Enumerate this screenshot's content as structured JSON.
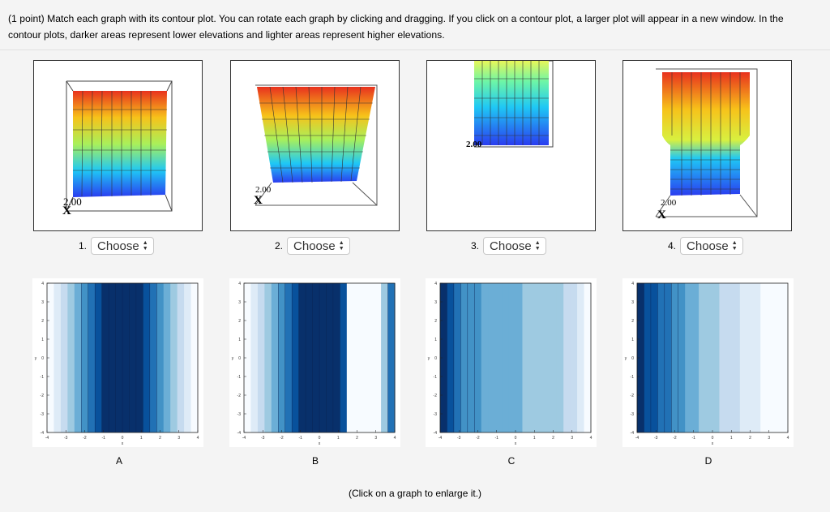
{
  "prompt": {
    "text": "(1 point) Match each graph with its contour plot. You can rotate each graph by clicking and dragging. If you click on a contour plot, a larger plot will appear in a new window. In the contour plots, darker areas represent lower elevations and lighter areas represent higher elevations."
  },
  "graphs": [
    {
      "number": "1.",
      "select_value": "Choose",
      "axis_label": "2.00"
    },
    {
      "number": "2.",
      "select_value": "Choose",
      "axis_label": "2.00"
    },
    {
      "number": "3.",
      "select_value": "Choose",
      "axis_label": "2.00"
    },
    {
      "number": "4.",
      "select_value": "Choose",
      "axis_label": "2.00"
    }
  ],
  "contours": [
    {
      "letter": "A"
    },
    {
      "letter": "B"
    },
    {
      "letter": "C"
    },
    {
      "letter": "D"
    }
  ],
  "contour_axes": {
    "y_ticks": [
      "4",
      "3",
      "2",
      "1",
      "0",
      "-1",
      "-2",
      "-3",
      "-4"
    ],
    "x_ticks": [
      "-4",
      "-3",
      "-2",
      "-1",
      "0",
      "1",
      "2",
      "3",
      "4"
    ],
    "xlabel": "x",
    "ylabel": "y"
  },
  "footer": {
    "text": "(Click on a graph to enlarge it.)"
  },
  "colors": {
    "dark_blue": "#08306b",
    "mid_blue": "#3a7ebf",
    "light_blue": "#deebf7",
    "surface_top": "#e8321e",
    "surface_bottom": "#2a3cf0"
  }
}
